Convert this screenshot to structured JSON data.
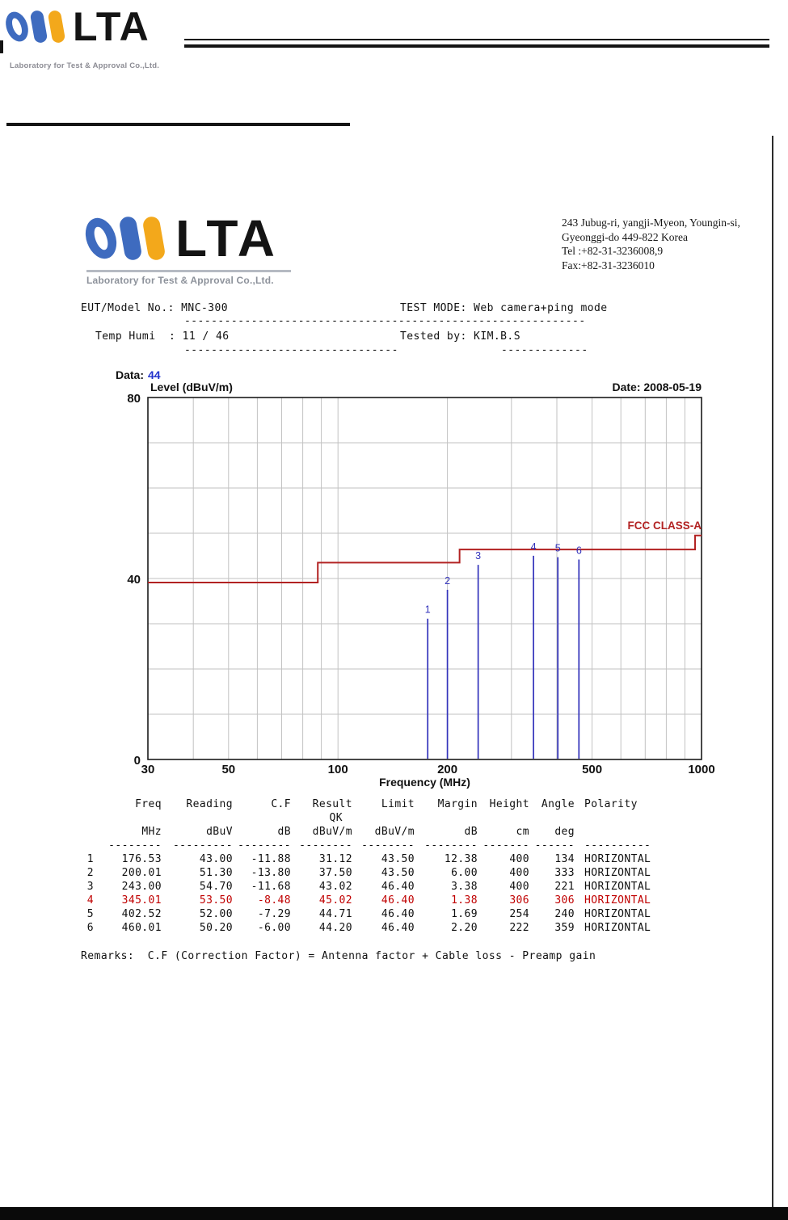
{
  "header": {
    "brand": "LTA",
    "subtitle": "Laboratory for Test & Approval Co.,Ltd."
  },
  "report": {
    "logo": {
      "brand": "LTA",
      "subtitle": "Laboratory for Test & Approval Co.,Ltd."
    },
    "address_lines": [
      "243 Jubug-ri, yangji-Myeon, Youngin-si,",
      "Gyeonggi-do  449-822 Korea",
      "Tel :+82-31-3236008,9",
      "Fax:+82-31-3236010"
    ],
    "info": {
      "eut": "EUT/Model No.: MNC-300",
      "test_mode": "TEST MODE: Web camera+ping mode",
      "divider1": "------------------------------------------------------------",
      "temp_humi": "Temp Humi  : 11 / 46",
      "tested_by": "Tested by: KIM.B.S",
      "divider2": "--------------------------------",
      "divider3": "-------------"
    },
    "data_label": "Data:",
    "data_value": "44",
    "remarks": "Remarks:  C.F (Correction Factor) = Antenna factor + Cable loss - Preamp gain"
  },
  "chart_data": {
    "type": "line",
    "ylabel": "Level (dBuV/m)",
    "xlabel": "Frequency (MHz)",
    "date_label": "Date: 2008-05-19",
    "x_scale": "log",
    "xlim": [
      30,
      1000
    ],
    "ylim": [
      0,
      80
    ],
    "x_ticks": [
      30,
      50,
      100,
      200,
      500,
      1000
    ],
    "y_ticks": [
      0,
      40,
      80
    ],
    "x_gridlines": [
      40,
      50,
      60,
      70,
      80,
      90,
      100,
      200,
      300,
      400,
      500,
      600,
      700,
      800,
      900
    ],
    "y_grid_step": 10,
    "grid": true,
    "limit_line": {
      "label": "FCC CLASS-A",
      "color": "#b22222",
      "segments": [
        {
          "x1": 30,
          "x2": 88,
          "y": 39.1
        },
        {
          "x1": 88,
          "x2": 216,
          "y": 43.5
        },
        {
          "x1": 216,
          "x2": 960,
          "y": 46.4
        },
        {
          "x1": 960,
          "x2": 1000,
          "y": 49.5
        }
      ]
    },
    "peaks": {
      "color": "#3333bb",
      "points": [
        {
          "n": 1,
          "freq": 176.53,
          "level": 31.12
        },
        {
          "n": 2,
          "freq": 200.01,
          "level": 37.5
        },
        {
          "n": 3,
          "freq": 243.0,
          "level": 43.02
        },
        {
          "n": 4,
          "freq": 345.01,
          "level": 45.02
        },
        {
          "n": 5,
          "freq": 402.52,
          "level": 44.71
        },
        {
          "n": 6,
          "freq": 460.01,
          "level": 44.2
        }
      ]
    }
  },
  "table": {
    "headers": [
      "Freq",
      "Reading",
      "C.F",
      "Result",
      "Limit",
      "Margin",
      "Height",
      "Angle",
      "Polarity"
    ],
    "subheader_result": "QK",
    "units": [
      "MHz",
      "dBuV",
      "dB",
      "dBuV/m",
      "dBuV/m",
      "dB",
      "cm",
      "deg"
    ],
    "separators": [
      "--------",
      "---------",
      "--------",
      "--------",
      "--------",
      "--------",
      "-------",
      "------",
      "----------"
    ],
    "highlight_color": "#c00000",
    "rows": [
      {
        "no": "1",
        "freq": "176.53",
        "reading": "43.00",
        "cf": "-11.88",
        "result": "31.12",
        "limit": "43.50",
        "margin": "12.38",
        "height": "400",
        "angle": "134",
        "polarity": "HORIZONTAL",
        "highlight": false
      },
      {
        "no": "2",
        "freq": "200.01",
        "reading": "51.30",
        "cf": "-13.80",
        "result": "37.50",
        "limit": "43.50",
        "margin": "6.00",
        "height": "400",
        "angle": "333",
        "polarity": "HORIZONTAL",
        "highlight": false
      },
      {
        "no": "3",
        "freq": "243.00",
        "reading": "54.70",
        "cf": "-11.68",
        "result": "43.02",
        "limit": "46.40",
        "margin": "3.38",
        "height": "400",
        "angle": "221",
        "polarity": "HORIZONTAL",
        "highlight": false
      },
      {
        "no": "4",
        "freq": "345.01",
        "reading": "53.50",
        "cf": "-8.48",
        "result": "45.02",
        "limit": "46.40",
        "margin": "1.38",
        "height": "306",
        "angle": "306",
        "polarity": "HORIZONTAL",
        "highlight": true
      },
      {
        "no": "5",
        "freq": "402.52",
        "reading": "52.00",
        "cf": "-7.29",
        "result": "44.71",
        "limit": "46.40",
        "margin": "1.69",
        "height": "254",
        "angle": "240",
        "polarity": "HORIZONTAL",
        "highlight": false
      },
      {
        "no": "6",
        "freq": "460.01",
        "reading": "50.20",
        "cf": "-6.00",
        "result": "44.20",
        "limit": "46.40",
        "margin": "2.20",
        "height": "222",
        "angle": "359",
        "polarity": "HORIZONTAL",
        "highlight": false
      }
    ]
  }
}
